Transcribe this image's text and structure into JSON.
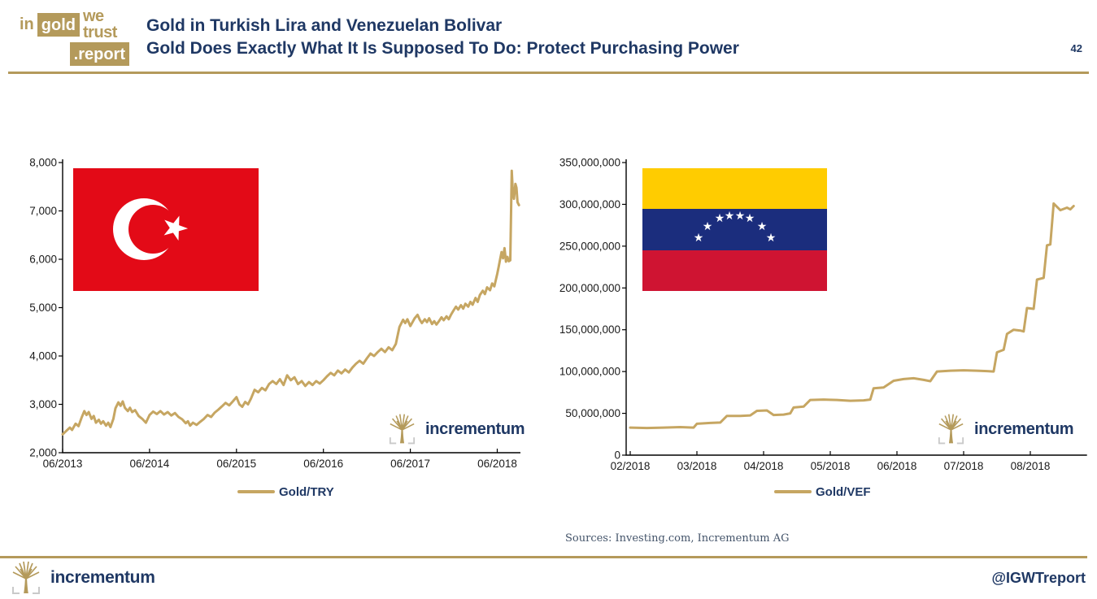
{
  "header": {
    "logo": {
      "word_in": "in",
      "word_gold": "gold",
      "word_we_trust": "we trust",
      "word_report": ".report"
    },
    "title_line1": "Gold in Turkish Lira and Venezuelan Bolivar",
    "title_line2": "Gold Does Exactly What It Is Supposed To Do: Protect Purchasing Power",
    "page_number": "42"
  },
  "colors": {
    "gold": "#b49a5b",
    "line_gold": "#c6a662",
    "navy": "#1f3864",
    "axis": "#1a1a1a",
    "sources": "#44546a",
    "turkey_red": "#e30a17",
    "venezuela_yellow": "#ffcc00",
    "venezuela_blue": "#1b2d7d",
    "venezuela_red": "#cf1432"
  },
  "icons": {
    "star": "★"
  },
  "watermark_text": "incrementum",
  "sources_text": "Sources: Investing.com, Incrementum AG",
  "footer": {
    "brand": "incrementum",
    "handle": "@IGWTreport"
  },
  "chart_data": [
    {
      "type": "line",
      "name": "gold-in-turkish-lira",
      "series_name": "Gold/TRY",
      "legend_position": "bottom-center",
      "grid": false,
      "x_unit": "months since 2013-06",
      "xlim": [
        0,
        63.2
      ],
      "ylim": [
        2000,
        8000
      ],
      "x_tick_positions": [
        0,
        12,
        24,
        36,
        48,
        60
      ],
      "x_tick_labels": [
        "06/2013",
        "06/2014",
        "06/2015",
        "06/2016",
        "06/2017",
        "06/2018"
      ],
      "y_tick_values": [
        2000,
        3000,
        4000,
        5000,
        6000,
        7000,
        8000
      ],
      "y_tick_labels": [
        "2,000",
        "3,000",
        "4,000",
        "5,000",
        "6,000",
        "7,000",
        "8,000"
      ],
      "points": [
        [
          0,
          2380
        ],
        [
          0.5,
          2450
        ],
        [
          1,
          2520
        ],
        [
          1.3,
          2470
        ],
        [
          1.8,
          2600
        ],
        [
          2.2,
          2550
        ],
        [
          2.6,
          2720
        ],
        [
          3,
          2860
        ],
        [
          3.3,
          2780
        ],
        [
          3.6,
          2840
        ],
        [
          4,
          2700
        ],
        [
          4.3,
          2760
        ],
        [
          4.6,
          2620
        ],
        [
          5,
          2680
        ],
        [
          5.3,
          2600
        ],
        [
          5.6,
          2650
        ],
        [
          6,
          2560
        ],
        [
          6.3,
          2620
        ],
        [
          6.6,
          2530
        ],
        [
          7,
          2700
        ],
        [
          7.3,
          2920
        ],
        [
          7.7,
          3040
        ],
        [
          8,
          2970
        ],
        [
          8.3,
          3060
        ],
        [
          8.6,
          2930
        ],
        [
          9,
          2860
        ],
        [
          9.3,
          2930
        ],
        [
          9.6,
          2840
        ],
        [
          10,
          2880
        ],
        [
          10.5,
          2760
        ],
        [
          11,
          2700
        ],
        [
          11.5,
          2620
        ],
        [
          12,
          2780
        ],
        [
          12.5,
          2850
        ],
        [
          13,
          2800
        ],
        [
          13.5,
          2860
        ],
        [
          14,
          2790
        ],
        [
          14.5,
          2840
        ],
        [
          15,
          2770
        ],
        [
          15.5,
          2820
        ],
        [
          16,
          2740
        ],
        [
          16.5,
          2690
        ],
        [
          17,
          2610
        ],
        [
          17.3,
          2650
        ],
        [
          17.6,
          2560
        ],
        [
          18,
          2620
        ],
        [
          18.5,
          2575
        ],
        [
          19,
          2640
        ],
        [
          19.5,
          2700
        ],
        [
          20,
          2780
        ],
        [
          20.5,
          2740
        ],
        [
          21,
          2830
        ],
        [
          21.5,
          2890
        ],
        [
          22,
          2960
        ],
        [
          22.5,
          3030
        ],
        [
          23,
          2980
        ],
        [
          23.5,
          3060
        ],
        [
          24,
          3150
        ],
        [
          24.4,
          3000
        ],
        [
          24.8,
          2950
        ],
        [
          25.2,
          3050
        ],
        [
          25.6,
          3000
        ],
        [
          26,
          3120
        ],
        [
          26.5,
          3300
        ],
        [
          27,
          3250
        ],
        [
          27.5,
          3340
        ],
        [
          28,
          3290
        ],
        [
          28.5,
          3420
        ],
        [
          29,
          3480
        ],
        [
          29.5,
          3420
        ],
        [
          30,
          3520
        ],
        [
          30.5,
          3400
        ],
        [
          31,
          3600
        ],
        [
          31.5,
          3500
        ],
        [
          32,
          3560
        ],
        [
          32.5,
          3420
        ],
        [
          33,
          3480
        ],
        [
          33.5,
          3380
        ],
        [
          34,
          3460
        ],
        [
          34.5,
          3400
        ],
        [
          35,
          3480
        ],
        [
          35.5,
          3430
        ],
        [
          36,
          3500
        ],
        [
          36.5,
          3580
        ],
        [
          37,
          3650
        ],
        [
          37.5,
          3600
        ],
        [
          38,
          3700
        ],
        [
          38.5,
          3640
        ],
        [
          39,
          3720
        ],
        [
          39.5,
          3660
        ],
        [
          40,
          3760
        ],
        [
          40.5,
          3840
        ],
        [
          41,
          3900
        ],
        [
          41.5,
          3840
        ],
        [
          42,
          3950
        ],
        [
          42.5,
          4050
        ],
        [
          43,
          4000
        ],
        [
          43.5,
          4080
        ],
        [
          44,
          4150
        ],
        [
          44.5,
          4080
        ],
        [
          45,
          4180
        ],
        [
          45.5,
          4120
        ],
        [
          46,
          4250
        ],
        [
          46.5,
          4600
        ],
        [
          47,
          4750
        ],
        [
          47.3,
          4680
        ],
        [
          47.6,
          4760
        ],
        [
          48,
          4620
        ],
        [
          48.3,
          4700
        ],
        [
          48.6,
          4780
        ],
        [
          49,
          4850
        ],
        [
          49.3,
          4750
        ],
        [
          49.6,
          4680
        ],
        [
          50,
          4760
        ],
        [
          50.3,
          4700
        ],
        [
          50.6,
          4780
        ],
        [
          51,
          4660
        ],
        [
          51.3,
          4720
        ],
        [
          51.6,
          4650
        ],
        [
          52,
          4730
        ],
        [
          52.3,
          4800
        ],
        [
          52.6,
          4740
        ],
        [
          53,
          4820
        ],
        [
          53.3,
          4760
        ],
        [
          53.6,
          4850
        ],
        [
          54,
          4950
        ],
        [
          54.3,
          5020
        ],
        [
          54.6,
          4960
        ],
        [
          55,
          5050
        ],
        [
          55.3,
          4980
        ],
        [
          55.6,
          5080
        ],
        [
          56,
          5020
        ],
        [
          56.3,
          5120
        ],
        [
          56.6,
          5060
        ],
        [
          57,
          5200
        ],
        [
          57.3,
          5120
        ],
        [
          57.6,
          5260
        ],
        [
          58,
          5350
        ],
        [
          58.3,
          5280
        ],
        [
          58.6,
          5420
        ],
        [
          59,
          5360
        ],
        [
          59.3,
          5500
        ],
        [
          59.6,
          5440
        ],
        [
          60,
          5700
        ],
        [
          60.2,
          5850
        ],
        [
          60.4,
          6000
        ],
        [
          60.6,
          6150
        ],
        [
          60.8,
          6020
        ],
        [
          61,
          6230
        ],
        [
          61.2,
          5950
        ],
        [
          61.4,
          6050
        ],
        [
          61.6,
          5960
        ],
        [
          61.8,
          5980
        ],
        [
          62,
          7830
        ],
        [
          62.15,
          7400
        ],
        [
          62.3,
          7250
        ],
        [
          62.5,
          7560
        ],
        [
          62.65,
          7480
        ],
        [
          62.8,
          7180
        ],
        [
          63,
          7120
        ]
      ]
    },
    {
      "type": "line",
      "name": "gold-in-venezuelan-bolivar",
      "series_name": "Gold/VEF",
      "legend_position": "bottom-center",
      "grid": false,
      "x_unit": "months since 2018-02",
      "xlim": [
        0,
        6.85
      ],
      "ylim": [
        0,
        350000000
      ],
      "x_tick_positions": [
        0,
        1,
        2,
        3,
        4,
        5,
        6
      ],
      "x_tick_labels": [
        "02/2018",
        "03/2018",
        "04/2018",
        "05/2018",
        "06/2018",
        "07/2018",
        "08/2018"
      ],
      "y_tick_values": [
        0,
        50000000,
        100000000,
        150000000,
        200000000,
        250000000,
        300000000,
        350000000
      ],
      "y_tick_labels": [
        "0",
        "50,000,000",
        "100,000,000",
        "150,000,000",
        "200,000,000",
        "250,000,000",
        "300,000,000",
        "350,000,000"
      ],
      "points": [
        [
          0,
          33000000
        ],
        [
          0.25,
          32500000
        ],
        [
          0.5,
          33000000
        ],
        [
          0.75,
          33500000
        ],
        [
          0.95,
          33000000
        ],
        [
          1.0,
          37500000
        ],
        [
          1.2,
          38500000
        ],
        [
          1.35,
          39000000
        ],
        [
          1.45,
          47000000
        ],
        [
          1.65,
          47000000
        ],
        [
          1.8,
          47500000
        ],
        [
          1.9,
          53000000
        ],
        [
          2.05,
          53500000
        ],
        [
          2.15,
          48000000
        ],
        [
          2.3,
          48500000
        ],
        [
          2.4,
          50000000
        ],
        [
          2.45,
          57000000
        ],
        [
          2.6,
          58000000
        ],
        [
          2.7,
          66000000
        ],
        [
          2.9,
          66500000
        ],
        [
          3.1,
          66000000
        ],
        [
          3.3,
          65000000
        ],
        [
          3.5,
          65500000
        ],
        [
          3.6,
          66500000
        ],
        [
          3.65,
          80000000
        ],
        [
          3.8,
          81000000
        ],
        [
          3.95,
          89000000
        ],
        [
          4.1,
          91000000
        ],
        [
          4.25,
          92000000
        ],
        [
          4.4,
          90000000
        ],
        [
          4.5,
          88500000
        ],
        [
          4.6,
          100000000
        ],
        [
          4.8,
          101000000
        ],
        [
          5.0,
          101500000
        ],
        [
          5.2,
          101000000
        ],
        [
          5.35,
          100500000
        ],
        [
          5.45,
          100000000
        ],
        [
          5.5,
          123000000
        ],
        [
          5.6,
          126000000
        ],
        [
          5.65,
          145000000
        ],
        [
          5.75,
          150000000
        ],
        [
          5.85,
          149000000
        ],
        [
          5.9,
          148000000
        ],
        [
          5.95,
          176000000
        ],
        [
          6.05,
          175000000
        ],
        [
          6.1,
          210000000
        ],
        [
          6.2,
          212000000
        ],
        [
          6.25,
          251000000
        ],
        [
          6.3,
          252000000
        ],
        [
          6.35,
          301000000
        ],
        [
          6.45,
          293000000
        ],
        [
          6.55,
          296000000
        ],
        [
          6.6,
          294000000
        ],
        [
          6.65,
          298000000
        ]
      ]
    }
  ]
}
